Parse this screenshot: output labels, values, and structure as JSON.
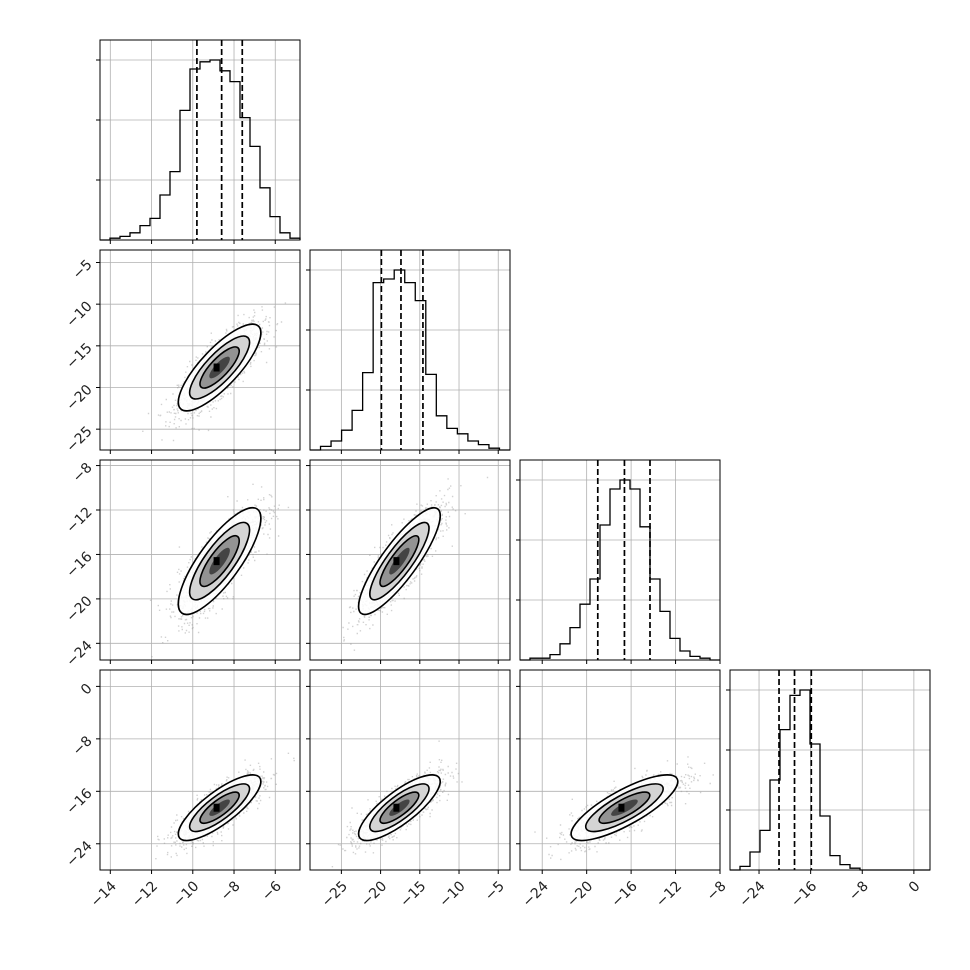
{
  "chart_data": {
    "type": "corner",
    "grid": true,
    "histogram_quantile_lines": [
      0.16,
      0.5,
      0.84
    ],
    "contour_levels": 3,
    "variables": [
      {
        "xlim": [
          -14.5,
          -4.8
        ],
        "ticks": [
          -14,
          -12,
          -10,
          -8,
          -6
        ],
        "tick_labels": [
          "−14",
          "−12",
          "−10",
          "−8",
          "−6"
        ],
        "mean": -8.7,
        "sd": 1.0,
        "quantiles": [
          -9.8,
          -8.6,
          -7.6
        ],
        "hist_counts": [
          0.0,
          0.01,
          0.02,
          0.04,
          0.08,
          0.12,
          0.25,
          0.38,
          0.72,
          0.95,
          0.99,
          1.0,
          0.94,
          0.88,
          0.68,
          0.52,
          0.29,
          0.13,
          0.04,
          0.01
        ]
      },
      {
        "xlim": [
          -29.0,
          -3.5
        ],
        "ticks": [
          -25,
          -20,
          -15,
          -10,
          -5
        ],
        "tick_labels": [
          "−25",
          "−20",
          "−15",
          "−10",
          "−5"
        ],
        "mean": -17.6,
        "sd": 2.6,
        "quantiles": [
          -19.9,
          -17.4,
          -14.6
        ],
        "hist_counts": [
          0.0,
          0.02,
          0.05,
          0.11,
          0.22,
          0.43,
          0.93,
          0.95,
          1.0,
          0.93,
          0.83,
          0.42,
          0.19,
          0.12,
          0.09,
          0.05,
          0.03,
          0.01,
          0.0
        ]
      },
      {
        "xlim": [
          -26.0,
          -8.0
        ],
        "ticks": [
          -24,
          -20,
          -16,
          -12,
          -8
        ],
        "tick_labels": [
          "−24",
          "−20",
          "−16",
          "−12",
          "−8"
        ],
        "mean": -16.6,
        "sd": 2.4,
        "quantiles": [
          -19.0,
          -16.6,
          -14.3
        ],
        "hist_counts": [
          0.0,
          0.01,
          0.01,
          0.03,
          0.09,
          0.18,
          0.31,
          0.45,
          0.75,
          0.95,
          1.0,
          0.95,
          0.74,
          0.45,
          0.27,
          0.12,
          0.05,
          0.02,
          0.01,
          0.0
        ]
      },
      {
        "xlim": [
          -28.5,
          2.5
        ],
        "ticks": [
          -24,
          -16,
          -8,
          0
        ],
        "tick_labels": [
          "−24",
          "−16",
          "−8",
          "0"
        ],
        "mean": -18.5,
        "sd": 2.5,
        "quantiles": [
          -20.9,
          -18.5,
          -15.9
        ],
        "hist_counts": [
          0.0,
          0.02,
          0.1,
          0.22,
          0.5,
          0.78,
          0.97,
          1.0,
          0.7,
          0.3,
          0.08,
          0.03,
          0.01,
          0.0,
          0.0,
          0.0,
          0.0,
          0.0,
          0.0,
          0.0
        ]
      }
    ],
    "y_axes": [
      {
        "ylim": [
          -27.5,
          -3.5
        ],
        "ticks": [
          -5,
          -10,
          -15,
          -20,
          -25
        ],
        "tick_labels": [
          "−5",
          "−10",
          "−15",
          "−20",
          "−25"
        ]
      },
      {
        "ylim": [
          -25.5,
          -7.5
        ],
        "ticks": [
          -8,
          -12,
          -16,
          -20,
          -24
        ],
        "tick_labels": [
          "−8",
          "−12",
          "−16",
          "−20",
          "−24"
        ]
      },
      {
        "ylim": [
          -28.0,
          2.5
        ],
        "ticks": [
          0,
          -8,
          -16,
          -24
        ],
        "tick_labels": [
          "0",
          "−8",
          "−16",
          "−24"
        ]
      }
    ],
    "correlations": [
      [
        0,
        1,
        0.8
      ],
      [
        0,
        2,
        0.8
      ],
      [
        0,
        3,
        0.8
      ],
      [
        1,
        2,
        0.85
      ],
      [
        1,
        3,
        0.8
      ],
      [
        2,
        3,
        0.8
      ]
    ]
  },
  "colors": {
    "ink": "#000000",
    "grid": "#b0b0b0",
    "points": "#9a9a9a",
    "density_levels": [
      "#ffffff",
      "#cfcfcf",
      "#8c8c8c",
      "#3c3c3c",
      "#000000"
    ]
  }
}
